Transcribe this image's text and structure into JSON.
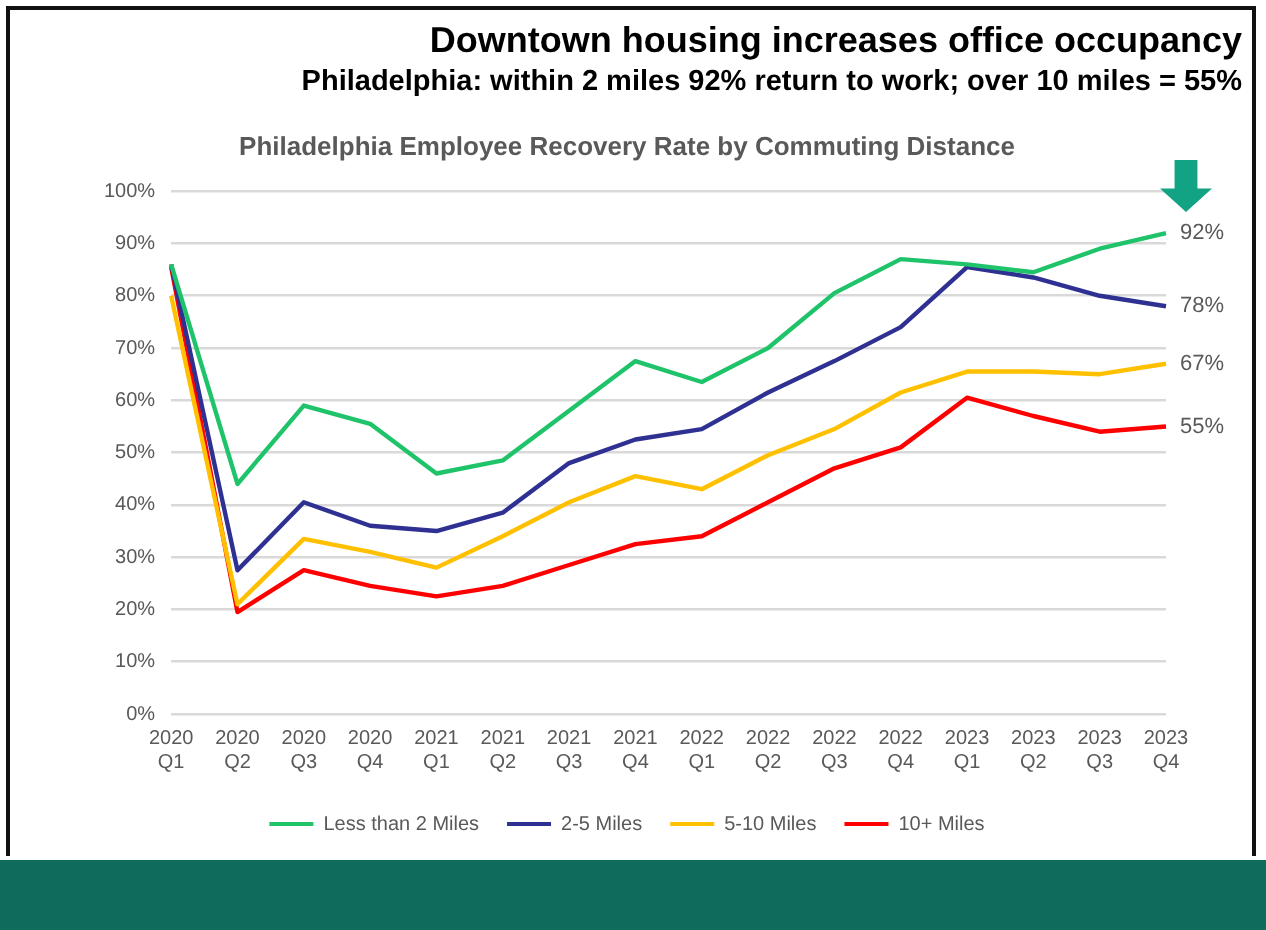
{
  "chart_data": {
    "type": "line",
    "title": "Downtown housing increases office occupancy",
    "subtitle": "Philadelphia: within 2 miles 92% return to work; over 10 miles = 55%",
    "annotations": [
      "Philadelphia Employee Recovery Rate by Commuting Distance"
    ],
    "categories": [
      "2020 Q1",
      "2020 Q2",
      "2020 Q3",
      "2020 Q4",
      "2021 Q1",
      "2021 Q2",
      "2021 Q3",
      "2021 Q4",
      "2022 Q1",
      "2022 Q2",
      "2022 Q3",
      "2022 Q4",
      "2023 Q1",
      "2023 Q2",
      "2023 Q3",
      "2023 Q4"
    ],
    "series": [
      {
        "name": "Less than 2 Miles",
        "color": "#1fc46a",
        "values": [
          86,
          44,
          59,
          55.5,
          46,
          48.5,
          58,
          67.5,
          63.5,
          70,
          80.5,
          87,
          86,
          84.5,
          89,
          92
        ],
        "value_labels": [
          null,
          null,
          null,
          null,
          null,
          null,
          null,
          null,
          null,
          null,
          null,
          null,
          null,
          null,
          null,
          "92%"
        ]
      },
      {
        "name": "2-5 Miles",
        "color": "#2e3192",
        "values": [
          86,
          27.5,
          40.5,
          36,
          35,
          38.5,
          48,
          52.5,
          54.5,
          61.5,
          67.5,
          74,
          85.5,
          83.5,
          80,
          78
        ],
        "value_labels": [
          null,
          null,
          null,
          null,
          null,
          null,
          null,
          null,
          null,
          null,
          null,
          null,
          null,
          null,
          null,
          "78%"
        ]
      },
      {
        "name": "5-10 Miles",
        "color": "#ffc000",
        "values": [
          80,
          21,
          33.5,
          31,
          28,
          34,
          40.5,
          45.5,
          43,
          49.5,
          54.5,
          61.5,
          65.5,
          65.5,
          65,
          67
        ],
        "value_labels": [
          null,
          null,
          null,
          null,
          null,
          null,
          null,
          null,
          null,
          null,
          null,
          null,
          null,
          null,
          null,
          "67%"
        ]
      },
      {
        "name": "10+ Miles",
        "color": "#ff0000",
        "values": [
          85.5,
          19.5,
          27.5,
          24.5,
          22.5,
          24.5,
          28.5,
          32.5,
          34,
          40.5,
          47,
          51,
          60.5,
          57,
          54,
          55
        ],
        "value_labels": [
          null,
          null,
          null,
          null,
          null,
          null,
          null,
          null,
          null,
          null,
          null,
          null,
          null,
          null,
          null,
          "55%"
        ]
      }
    ],
    "ylim": [
      0,
      100
    ],
    "yticks": [
      {
        "value": 0,
        "label": "0%"
      },
      {
        "value": 10,
        "label": "10%"
      },
      {
        "value": 20,
        "label": "20%"
      },
      {
        "value": 30,
        "label": "30%"
      },
      {
        "value": 40,
        "label": "40%"
      },
      {
        "value": 50,
        "label": "50%"
      },
      {
        "value": 60,
        "label": "60%"
      },
      {
        "value": 70,
        "label": "70%"
      },
      {
        "value": 80,
        "label": "80%"
      },
      {
        "value": 90,
        "label": "90%"
      },
      {
        "value": 100,
        "label": "100%"
      }
    ],
    "grid": "y",
    "legend": "bottom",
    "marker": "none",
    "line_style": "solid"
  }
}
